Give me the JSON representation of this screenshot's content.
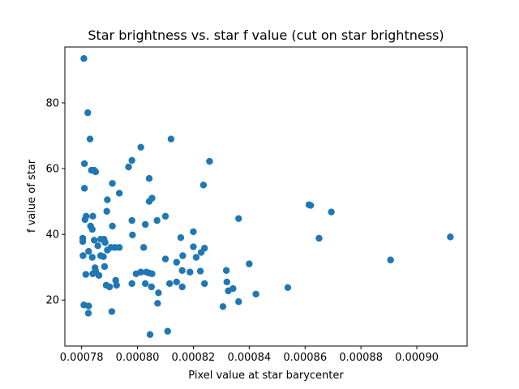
{
  "chart_data": {
    "type": "scatter",
    "title": "Star brightness vs. star f value (cut on star brightness)",
    "xlabel": "Pixel value at star barycenter",
    "ylabel": "f value of star",
    "xlim": [
      0.000774,
      0.000918
    ],
    "ylim": [
      6,
      97
    ],
    "xticks": [
      0.00078,
      0.0008,
      0.00082,
      0.00084,
      0.00086,
      0.00088,
      0.0009
    ],
    "xtick_labels": [
      "0.00078",
      "0.00080",
      "0.00082",
      "0.00084",
      "0.00086",
      "0.00088",
      "0.00090"
    ],
    "yticks": [
      20,
      40,
      60,
      80
    ],
    "ytick_labels": [
      "20",
      "40",
      "60",
      "80"
    ],
    "grid": false,
    "marker_color": "#1f77b4",
    "points": [
      [
        0.0007808,
        93.5
      ],
      [
        0.0007822,
        77
      ],
      [
        0.000783,
        69
      ],
      [
        0.000781,
        61.5
      ],
      [
        0.0007835,
        59.5
      ],
      [
        0.000785,
        59
      ],
      [
        0.0007845,
        59.5
      ],
      [
        0.000781,
        54
      ],
      [
        0.0007812,
        44.5
      ],
      [
        0.0007816,
        45.5
      ],
      [
        0.000784,
        45.5
      ],
      [
        0.0007832,
        42.5
      ],
      [
        0.0007838,
        41.5
      ],
      [
        0.0007804,
        38.8
      ],
      [
        0.0007804,
        37.8
      ],
      [
        0.0007845,
        38.2
      ],
      [
        0.0007858,
        36.5
      ],
      [
        0.0007868,
        38.5
      ],
      [
        0.000788,
        38.5
      ],
      [
        0.0007884,
        37.5
      ],
      [
        0.0007878,
        33.2
      ],
      [
        0.0007868,
        33.5
      ],
      [
        0.0007805,
        33.5
      ],
      [
        0.0007825,
        34.8
      ],
      [
        0.0007838,
        33.0
      ],
      [
        0.0007848,
        29.8
      ],
      [
        0.000785,
        28.8
      ],
      [
        0.000784,
        28.0
      ],
      [
        0.0007815,
        27.8
      ],
      [
        0.0007862,
        27.5
      ],
      [
        0.0007882,
        30.2
      ],
      [
        0.0007892,
        35.2
      ],
      [
        0.0007905,
        36.0
      ],
      [
        0.000792,
        36.0
      ],
      [
        0.0007935,
        36.0
      ],
      [
        0.000791,
        42.5
      ],
      [
        0.000789,
        47
      ],
      [
        0.0007892,
        50.5
      ],
      [
        0.000791,
        55.5
      ],
      [
        0.0007935,
        52.5
      ],
      [
        0.0007968,
        60.5
      ],
      [
        0.000798,
        62.5
      ],
      [
        0.0008012,
        66.5
      ],
      [
        0.0008042,
        57
      ],
      [
        0.0008042,
        50
      ],
      [
        0.0008052,
        51
      ],
      [
        0.0008028,
        43
      ],
      [
        0.000798,
        44.2
      ],
      [
        0.0007982,
        39.8
      ],
      [
        0.0008022,
        36
      ],
      [
        0.0008012,
        28.5
      ],
      [
        0.0007995,
        28.0
      ],
      [
        0.0008032,
        28.5
      ],
      [
        0.0008042,
        28.2
      ],
      [
        0.0008052,
        28.0
      ],
      [
        0.0008028,
        25.0
      ],
      [
        0.000805,
        24.0
      ],
      [
        0.000798,
        25.0
      ],
      [
        0.0007922,
        26.0
      ],
      [
        0.0007925,
        24.5
      ],
      [
        0.0007888,
        24.5
      ],
      [
        0.00079,
        24.0
      ],
      [
        0.0007908,
        16.5
      ],
      [
        0.0007808,
        18.5
      ],
      [
        0.0007825,
        18.2
      ],
      [
        0.0007824,
        16.0
      ],
      [
        0.000807,
        44.2
      ],
      [
        0.00081,
        45.5
      ],
      [
        0.000812,
        69
      ],
      [
        0.000814,
        31.5
      ],
      [
        0.00081,
        32.5
      ],
      [
        0.0008115,
        25.0
      ],
      [
        0.000814,
        25.5
      ],
      [
        0.000816,
        24.0
      ],
      [
        0.0008075,
        22.2
      ],
      [
        0.0008072,
        19.0
      ],
      [
        0.0008045,
        9.5
      ],
      [
        0.0008108,
        10.5
      ],
      [
        0.0008155,
        39.0
      ],
      [
        0.0008162,
        33.5
      ],
      [
        0.000816,
        29.0
      ],
      [
        0.0008188,
        28.5
      ],
      [
        0.00082,
        36.2
      ],
      [
        0.00082,
        40.8
      ],
      [
        0.000821,
        33.0
      ],
      [
        0.0008228,
        34.5
      ],
      [
        0.000824,
        35.8
      ],
      [
        0.0008225,
        28.8
      ],
      [
        0.000824,
        25.0
      ],
      [
        0.0008236,
        55
      ],
      [
        0.0008258,
        62.2
      ],
      [
        0.0008318,
        29.0
      ],
      [
        0.000832,
        25.5
      ],
      [
        0.0008342,
        23.5
      ],
      [
        0.0008325,
        22.8
      ],
      [
        0.0008306,
        18.0
      ],
      [
        0.0008362,
        44.8
      ],
      [
        0.00084,
        31.0
      ],
      [
        0.0008362,
        19.5
      ],
      [
        0.0008424,
        21.8
      ],
      [
        0.0008538,
        23.8
      ],
      [
        0.0008614,
        49.0
      ],
      [
        0.000862,
        48.8
      ],
      [
        0.0008694,
        46.8
      ],
      [
        0.000865,
        38.8
      ],
      [
        0.0008906,
        32.2
      ],
      [
        0.000912,
        39.2
      ]
    ]
  }
}
